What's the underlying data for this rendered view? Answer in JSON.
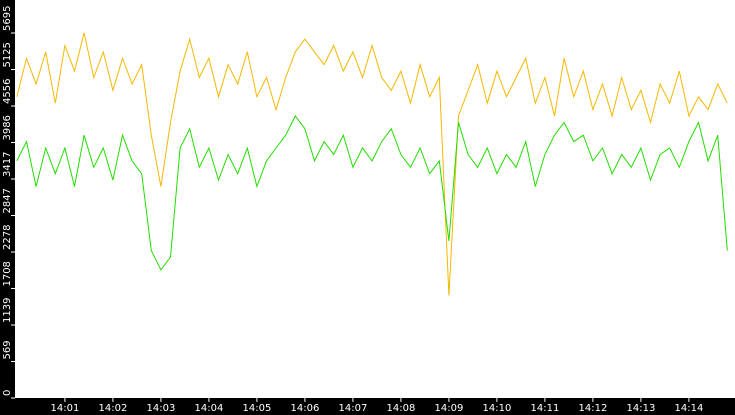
{
  "chart_data": {
    "type": "line",
    "x": [
      840,
      840.2,
      840.4,
      840.6,
      840.8,
      841,
      841.2,
      841.4,
      841.6,
      841.8,
      842,
      842.2,
      842.4,
      842.6,
      842.8,
      843,
      843.2,
      843.4,
      843.6,
      843.8,
      844,
      844.2,
      844.4,
      844.6,
      844.8,
      845,
      845.2,
      845.4,
      845.6,
      845.8,
      846,
      846.2,
      846.4,
      846.6,
      846.8,
      847,
      847.2,
      847.4,
      847.6,
      847.8,
      848,
      848.2,
      848.4,
      848.6,
      848.8,
      849,
      849.2,
      849.4,
      849.6,
      849.8,
      850,
      850.2,
      850.4,
      850.6,
      850.8,
      851,
      851.2,
      851.4,
      851.6,
      851.8,
      852,
      852.2,
      852.4,
      852.6,
      852.8,
      853,
      853.2,
      853.4,
      853.6,
      853.8,
      854,
      854.2,
      854.4,
      854.6,
      854.8
    ],
    "series": [
      {
        "color": "#f5b800",
        "values": [
          4700,
          5300,
          4900,
          5400,
          4600,
          5500,
          5100,
          5700,
          5000,
          5400,
          4800,
          5300,
          4900,
          5200,
          4100,
          3300,
          4300,
          5100,
          5600,
          5000,
          5300,
          4700,
          5200,
          4900,
          5400,
          4700,
          5000,
          4500,
          5000,
          5400,
          5600,
          5400,
          5200,
          5500,
          5100,
          5400,
          5000,
          5500,
          5000,
          4800,
          5100,
          4600,
          5200,
          4700,
          5000,
          1600,
          4400,
          4800,
          5200,
          4600,
          5100,
          4700,
          5000,
          5300,
          4600,
          5000,
          4400,
          5300,
          4700,
          5100,
          4500,
          4900,
          4400,
          5000,
          4500,
          4800,
          4300,
          4900,
          4600,
          5100,
          4400,
          4700,
          4500,
          4900,
          4600
        ]
      },
      {
        "color": "#22dd00",
        "values": [
          3700,
          4000,
          3300,
          3900,
          3500,
          3900,
          3300,
          4100,
          3600,
          3900,
          3400,
          4100,
          3700,
          3500,
          2300,
          2000,
          2200,
          3900,
          4200,
          3600,
          3900,
          3400,
          3800,
          3500,
          3900,
          3300,
          3700,
          3900,
          4100,
          4400,
          4200,
          3700,
          4000,
          3800,
          4100,
          3600,
          3900,
          3700,
          4000,
          4200,
          3800,
          3600,
          3900,
          3500,
          3700,
          2450,
          4300,
          3800,
          3600,
          3900,
          3500,
          3800,
          3600,
          4000,
          3300,
          3800,
          4100,
          4300,
          4000,
          4100,
          3700,
          3900,
          3500,
          3800,
          3600,
          3900,
          3400,
          3800,
          3900,
          3600,
          4000,
          4300,
          3700,
          4100,
          2300
        ]
      }
    ],
    "xlim": [
      839.96,
      854.96
    ],
    "xticks": [
      {
        "value": 841,
        "label": "14:01"
      },
      {
        "value": 842,
        "label": "14:02"
      },
      {
        "value": 843,
        "label": "14:03"
      },
      {
        "value": 844,
        "label": "14:04"
      },
      {
        "value": 845,
        "label": "14:05"
      },
      {
        "value": 846,
        "label": "14:06"
      },
      {
        "value": 847,
        "label": "14:07"
      },
      {
        "value": 848,
        "label": "14:08"
      },
      {
        "value": 849,
        "label": "14:09"
      },
      {
        "value": 850,
        "label": "14:10"
      },
      {
        "value": 851,
        "label": "14:11"
      },
      {
        "value": 852,
        "label": "14:12"
      },
      {
        "value": 853,
        "label": "14:13"
      },
      {
        "value": 854,
        "label": "14:14"
      }
    ],
    "ylim": [
      0,
      6210
    ],
    "yticks": [
      0,
      569,
      1139,
      1708,
      2278,
      2847,
      3417,
      3986,
      4556,
      5125,
      5695
    ]
  }
}
